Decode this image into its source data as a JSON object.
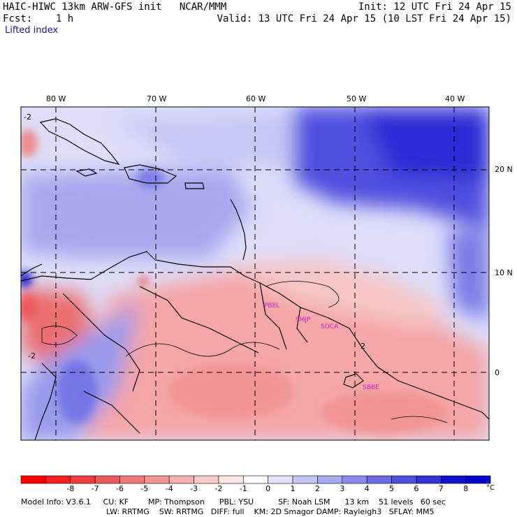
{
  "header": {
    "line1_left": "HAIC-HIWC 13km ARW-GFS init   NCAR/MMM",
    "line2_left": "Fcst:    1 h",
    "line1_right": "Init: 12 UTC Fri 24 Apr 15",
    "line2_right": "Valid: 13 UTC Fri 24 Apr 15 (10 LST Fri 24 Apr 15)",
    "field_name": "Lifted index"
  },
  "map": {
    "lon_labels": [
      "80 W",
      "70 W",
      "60 W",
      "50 W",
      "40 W"
    ],
    "lat_labels": [
      "20 N",
      "10 N",
      "0"
    ],
    "stations": [
      "PBEL",
      "SMJP",
      "SOCA",
      "SBBE"
    ],
    "contour_labels": [
      "-2",
      "2",
      "-2"
    ]
  },
  "colorbar": {
    "labels": [
      "-8",
      "-7",
      "-6",
      "-5",
      "-4",
      "-3",
      "-2",
      "-1",
      "0",
      "1",
      "2",
      "3",
      "4",
      "5",
      "6",
      "7",
      "8"
    ],
    "unit": "°C",
    "colors": [
      "#ff0000",
      "#f61e1e",
      "#f03c3c",
      "#ea5a5a",
      "#ef7878",
      "#f39595",
      "#f6b0b0",
      "#f9cbcb",
      "#fce6e6",
      "#ffffff",
      "#e2e2fb",
      "#c5c5f5",
      "#a8a8ef",
      "#8a8ae9",
      "#6d6de3",
      "#4f4fdd",
      "#3232d7",
      "#1111d0",
      "#0000cc"
    ]
  },
  "footer": {
    "line1": "Model Info: V3.6.1     CU: KF        MP: Thompson      PBL: YSU          SF: Noah LSM      13 km    51 levels   60 sec",
    "line2": "LW: RRTMG    SW: RRTMG   DIFF: full    KM: 2D Smagor DAMP: Rayleigh3   SFLAY: MM5"
  }
}
